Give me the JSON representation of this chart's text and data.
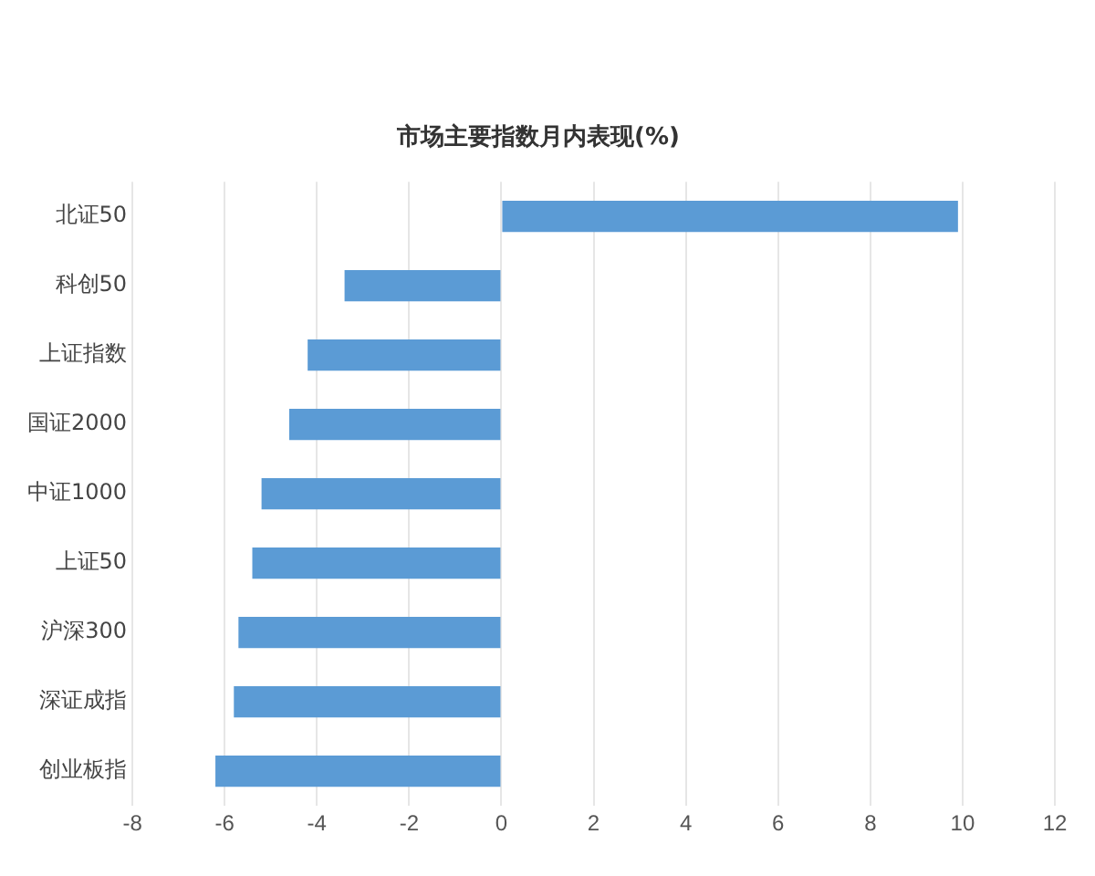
{
  "chart_data": {
    "type": "bar",
    "orientation": "horizontal",
    "title": "市场主要指数月内表现(%)",
    "categories": [
      "北证50",
      "科创50",
      "上证指数",
      "国证2000",
      "中证1000",
      "上证50",
      "沪深300",
      "深证成指",
      "创业板指"
    ],
    "values": [
      9.9,
      -3.4,
      -4.2,
      -4.6,
      -5.2,
      -5.4,
      -5.7,
      -5.8,
      -6.2
    ],
    "color": "#5b9bd5",
    "xlim": [
      -8,
      12
    ],
    "xticks": [
      -8,
      -6,
      -4,
      -2,
      0,
      2,
      4,
      6,
      8,
      10,
      12
    ],
    "grid": "x"
  }
}
